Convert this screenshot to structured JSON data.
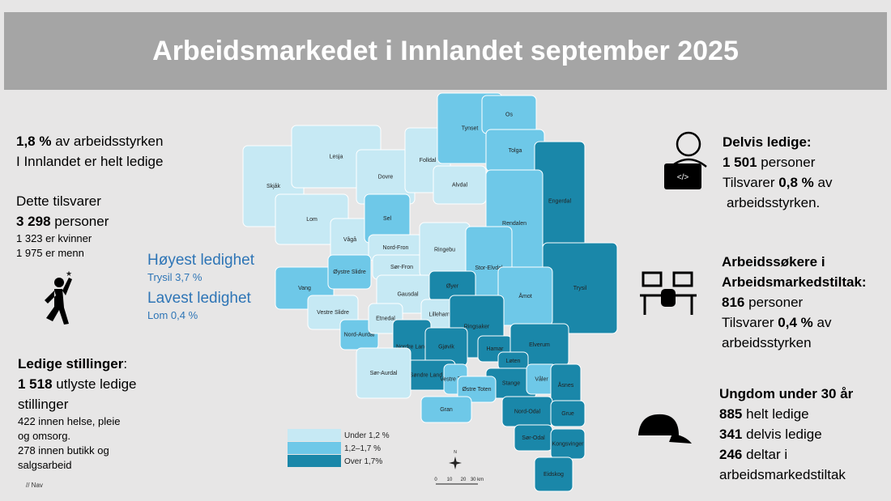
{
  "header": {
    "title": "Arbeidsmarkedet i Innlandet september 2025"
  },
  "left": {
    "unemployed": {
      "rate": "1,8 %",
      "rate_text": "av arbeidsstyrken",
      "line2": "I Innlandet er helt ledige"
    },
    "equivalent": {
      "intro": "Dette tilsvarer",
      "count": "3 298",
      "count_text": "personer",
      "women": "1 323 er kvinner",
      "men": "1 975 er menn"
    },
    "vacancies": {
      "title": "Ledige stillinger",
      "title_suffix": ":",
      "count": "1 518",
      "count_text": "utlyste ledige",
      "line2": "stillinger",
      "health": "422  innen helse, pleie",
      "health2": "og omsorg.",
      "retail": "278 innen butikk og",
      "retail2": "salgsarbeid"
    },
    "source": "// Nav"
  },
  "middle": {
    "highest_title": "Høyest ledighet",
    "highest": "Trysil 3,7  %",
    "lowest_title": "Lavest ledighet",
    "lowest": "Lom 0,4 %"
  },
  "right": {
    "partial": {
      "title": "Delvis ledige:",
      "count": "1 501",
      "count_text": "personer",
      "line3a": "Tilsvarer",
      "rate": "0,8 %",
      "line3b": "av",
      "line4": "arbeidsstyrken."
    },
    "measures": {
      "title1": "Arbeidssøkere i",
      "title2": "Arbeidsmarkedstiltak:",
      "count": "816",
      "count_text": "personer",
      "line3a": "Tilsvarer",
      "rate": "0,4 %",
      "line3b": "av",
      "line4": "arbeidsstyrken"
    },
    "youth": {
      "title": "Ungdom under 30 år",
      "l1n": "885",
      "l1t": "helt ledige",
      "l2n": "341",
      "l2t": "delvis ledige",
      "l3n": "246",
      "l3t": "deltar i",
      "l4": "arbeidsmarkedstiltak"
    }
  },
  "map": {
    "legend": [
      {
        "label": "Under 1,2 %",
        "color": "#c6e9f4"
      },
      {
        "label": "1,2–1,7 %",
        "color": "#6ec8e8"
      },
      {
        "label": "Over 1,7%",
        "color": "#1a87a9"
      }
    ],
    "north": "N",
    "scale": [
      "0",
      "10",
      "20",
      "30 km"
    ],
    "municipalities": [
      {
        "name": "Skjåk",
        "color": "#c6e9f4"
      },
      {
        "name": "Lesja",
        "color": "#c6e9f4"
      },
      {
        "name": "Dovre",
        "color": "#c6e9f4"
      },
      {
        "name": "Folldal",
        "color": "#c6e9f4"
      },
      {
        "name": "Lom",
        "color": "#c6e9f4"
      },
      {
        "name": "Vågå",
        "color": "#c6e9f4"
      },
      {
        "name": "Sel",
        "color": "#6ec8e8"
      },
      {
        "name": "Nord-Fron",
        "color": "#c6e9f4"
      },
      {
        "name": "Sør-Fron",
        "color": "#c6e9f4"
      },
      {
        "name": "Alvdal",
        "color": "#c6e9f4"
      },
      {
        "name": "Tynset",
        "color": "#6ec8e8"
      },
      {
        "name": "Os",
        "color": "#6ec8e8"
      },
      {
        "name": "Tolga",
        "color": "#6ec8e8"
      },
      {
        "name": "Engerdal",
        "color": "#1a87a9"
      },
      {
        "name": "Rendalen",
        "color": "#6ec8e8"
      },
      {
        "name": "Ringebu",
        "color": "#c6e9f4"
      },
      {
        "name": "Stor-Elvdal",
        "color": "#6ec8e8"
      },
      {
        "name": "Gausdal",
        "color": "#c6e9f4"
      },
      {
        "name": "Øyer",
        "color": "#1a87a9"
      },
      {
        "name": "Trysil",
        "color": "#1a87a9"
      },
      {
        "name": "Åmot",
        "color": "#6ec8e8"
      },
      {
        "name": "Vang",
        "color": "#6ec8e8"
      },
      {
        "name": "Øystre Slidre",
        "color": "#6ec8e8"
      },
      {
        "name": "Vestre Slidre",
        "color": "#c6e9f4"
      },
      {
        "name": "Nord-Aurdal",
        "color": "#6ec8e8"
      },
      {
        "name": "Etnedal",
        "color": "#c6e9f4"
      },
      {
        "name": "Lillehammer",
        "color": "#c6e9f4"
      },
      {
        "name": "Ringsaker",
        "color": "#1a87a9"
      },
      {
        "name": "Nordre Land",
        "color": "#1a87a9"
      },
      {
        "name": "Gjøvik",
        "color": "#1a87a9"
      },
      {
        "name": "Hamar",
        "color": "#1a87a9"
      },
      {
        "name": "Elverum",
        "color": "#1a87a9"
      },
      {
        "name": "Løten",
        "color": "#1a87a9"
      },
      {
        "name": "Søndre Land",
        "color": "#1a87a9"
      },
      {
        "name": "Vestre Toten",
        "color": "#6ec8e8"
      },
      {
        "name": "Stange",
        "color": "#1a87a9"
      },
      {
        "name": "Våler",
        "color": "#6ec8e8"
      },
      {
        "name": "Sør-Aurdal",
        "color": "#c6e9f4"
      },
      {
        "name": "Østre Toten",
        "color": "#6ec8e8"
      },
      {
        "name": "Åsnes",
        "color": "#1a87a9"
      },
      {
        "name": "Gran",
        "color": "#6ec8e8"
      },
      {
        "name": "Nord-Odal",
        "color": "#1a87a9"
      },
      {
        "name": "Grue",
        "color": "#1a87a9"
      },
      {
        "name": "Sør-Odal",
        "color": "#1a87a9"
      },
      {
        "name": "Kongsvinger",
        "color": "#1a87a9"
      },
      {
        "name": "Eidskog",
        "color": "#1a87a9"
      }
    ]
  }
}
